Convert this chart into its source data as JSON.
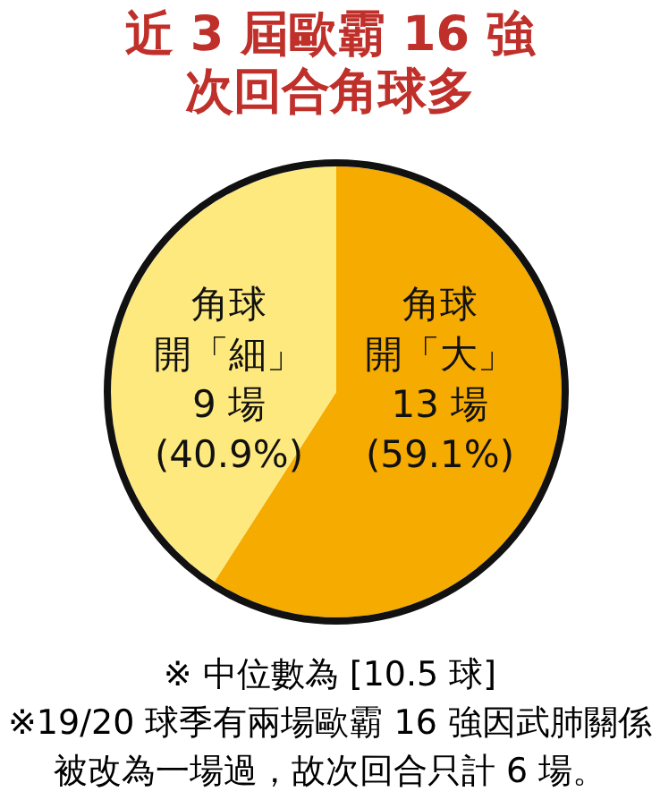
{
  "chart_data": {
    "type": "pie",
    "title": "近 3 屆歐霸 16 強次回合角球多",
    "categories": [
      "角球開「大」",
      "角球開「細」"
    ],
    "values": [
      13,
      9
    ],
    "value_labels": [
      "13 場\n(59.1%)",
      "9 場\n(40.9%)"
    ],
    "colors": [
      "#f5ab00",
      "#fee97e"
    ],
    "annotations": [
      "※ 中位數為 [10.5 球]",
      "※19/20 球季有兩場歐霸 16 強因武肺關係被改為一場過，故次回合只計 6 場。"
    ]
  }
}
